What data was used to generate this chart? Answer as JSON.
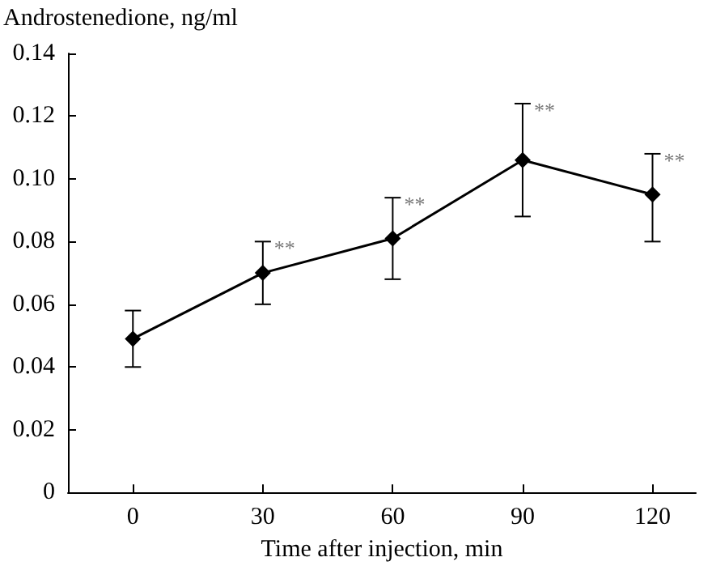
{
  "chart_data": {
    "type": "line",
    "ylabel": "Androstenedione, ng/ml",
    "xlabel": "Time after injection, min",
    "x": [
      0,
      30,
      60,
      90,
      120
    ],
    "series": [
      {
        "color": "#000000",
        "values": [
          0.049,
          0.07,
          0.081,
          0.106,
          0.095
        ],
        "errors": [
          [
            0.04,
            0.058
          ],
          [
            0.06,
            0.08
          ],
          [
            0.068,
            0.094
          ],
          [
            0.088,
            0.124
          ],
          [
            0.08,
            0.108
          ]
        ]
      }
    ],
    "xlim": [
      -15,
      130
    ],
    "xticks": [
      0,
      30,
      60,
      90,
      120
    ],
    "ylim": [
      0,
      0.14
    ],
    "yticks": [
      0,
      0.02,
      0.04,
      0.06,
      0.08,
      {
        "value": 0.1,
        "label": "0.10"
      },
      0.12,
      0.14
    ],
    "annotations": [
      {
        "text": "**",
        "x": 30,
        "y": 0.08
      },
      {
        "text": "**",
        "x": 60,
        "y": 0.094
      },
      {
        "text": "**",
        "x": 90,
        "y": 0.124
      },
      {
        "text": "**",
        "x": 120,
        "y": 0.108
      }
    ],
    "marker": "diamond",
    "line_style": "solid"
  }
}
